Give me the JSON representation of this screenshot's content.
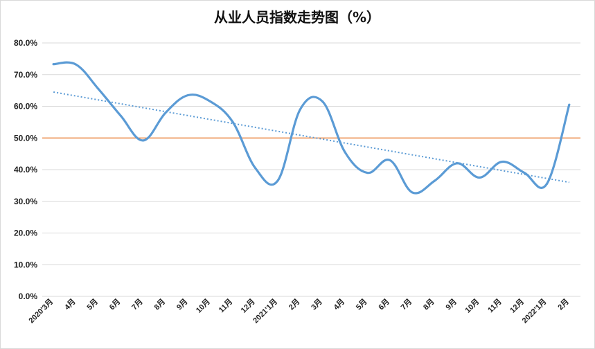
{
  "chart_data": {
    "type": "line",
    "title": "从业人员指数走势图（%）",
    "categories": [
      "2020'3月",
      "4月",
      "5月",
      "6月",
      "7月",
      "8月",
      "9月",
      "10月",
      "11月",
      "12月",
      "2021'1月",
      "2月",
      "3月",
      "4月",
      "5月",
      "6月",
      "7月",
      "8月",
      "9月",
      "10月",
      "11月",
      "12月",
      "2022'1月",
      "2月"
    ],
    "series": [
      {
        "values": [
          73.3,
          73.2,
          65.5,
          57.0,
          49.2,
          58.0,
          63.5,
          61.5,
          55.0,
          40.5,
          36.5,
          59.0,
          61.5,
          45.5,
          39.0,
          43.0,
          32.8,
          36.5,
          42.0,
          37.5,
          42.5,
          39.0,
          35.5,
          60.5
        ],
        "color": "#5b9bd5"
      }
    ],
    "reference_line": {
      "value": 50.0,
      "color": "#ed7d31"
    },
    "trendline": {
      "start": 64.5,
      "end": 36.0,
      "color": "#5b9bd5"
    },
    "ylim": [
      0,
      80
    ],
    "yticks": [
      "0.0%",
      "10.0%",
      "20.0%",
      "30.0%",
      "40.0%",
      "50.0%",
      "60.0%",
      "70.0%",
      "80.0%"
    ],
    "grid": true,
    "gridline_color": "#d9d9d9"
  }
}
